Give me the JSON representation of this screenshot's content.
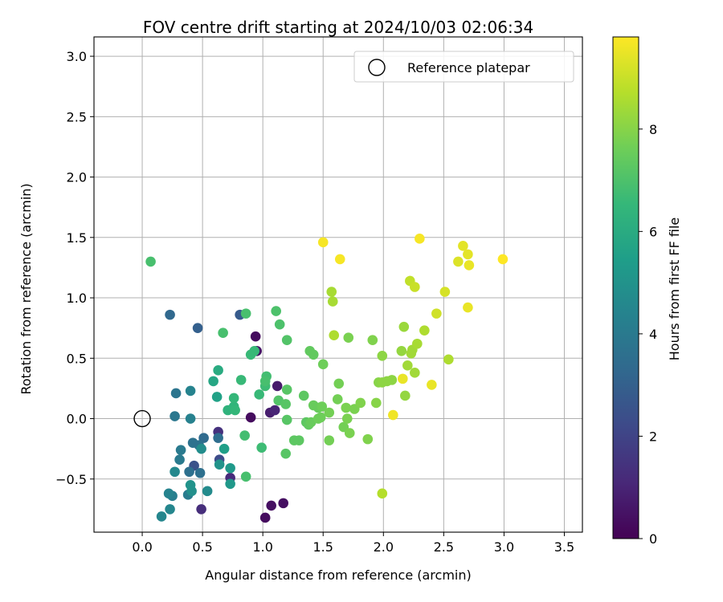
{
  "chart_data": {
    "type": "scatter",
    "title": "FOV centre drift starting at 2024/10/03 02:06:34",
    "xlabel": "Angular distance from reference (arcmin)",
    "ylabel": "Rotation from reference (arcmin)",
    "xlim": [
      -0.4,
      3.65
    ],
    "ylim": [
      -0.94,
      3.16
    ],
    "xticks": [
      "0.0",
      "0.5",
      "1.0",
      "1.5",
      "2.0",
      "2.5",
      "3.0",
      "3.5"
    ],
    "yticks": [
      "−0.5",
      "0.0",
      "0.5",
      "1.0",
      "1.5",
      "2.0",
      "2.5",
      "3.0"
    ],
    "grid": true,
    "legend": {
      "position": "top-right",
      "entries": [
        {
          "label": "Reference platepar",
          "marker": "open-circle",
          "x": 0.0,
          "y": 0.0
        }
      ]
    },
    "colorbar": {
      "label": "Hours from first FF file",
      "range": [
        0,
        9.8
      ],
      "ticks": [
        "0",
        "2",
        "4",
        "6",
        "8"
      ],
      "colormap": "viridis",
      "stops": [
        "#440154",
        "#482878",
        "#3e4989",
        "#31688e",
        "#26828e",
        "#1f9e89",
        "#35b779",
        "#6ece58",
        "#b5de2b",
        "#fde725"
      ]
    },
    "series": [
      {
        "points": [
          [
            0.94,
            0.68,
            0.3
          ],
          [
            0.9,
            0.01,
            0.3
          ],
          [
            1.02,
            -0.82,
            0.3
          ],
          [
            1.07,
            -0.72,
            0.4
          ],
          [
            1.17,
            -0.7,
            0.4
          ],
          [
            0.95,
            0.56,
            0.5
          ],
          [
            1.12,
            0.27,
            0.7
          ],
          [
            1.06,
            0.05,
            0.8
          ],
          [
            1.1,
            0.07,
            1.0
          ],
          [
            0.73,
            -0.49,
            1.2
          ],
          [
            0.49,
            -0.75,
            1.3
          ],
          [
            0.63,
            -0.11,
            1.4
          ],
          [
            0.64,
            -0.34,
            2.3
          ],
          [
            0.43,
            -0.39,
            2.5
          ],
          [
            0.81,
            0.86,
            2.8
          ],
          [
            0.46,
            0.75,
            3.0
          ],
          [
            0.23,
            0.86,
            3.3
          ],
          [
            0.51,
            -0.16,
            3.4
          ],
          [
            0.63,
            -0.16,
            3.5
          ],
          [
            0.39,
            -0.44,
            3.6
          ],
          [
            0.48,
            -0.45,
            3.6
          ],
          [
            0.42,
            -0.2,
            3.7
          ],
          [
            0.47,
            -0.22,
            3.7
          ],
          [
            0.28,
            0.21,
            3.8
          ],
          [
            0.27,
            0.02,
            3.9
          ],
          [
            0.31,
            -0.34,
            4.0
          ],
          [
            0.32,
            -0.26,
            4.0
          ],
          [
            0.38,
            -0.63,
            4.1
          ],
          [
            0.25,
            -0.64,
            4.2
          ],
          [
            0.4,
            0.0,
            4.3
          ],
          [
            0.4,
            0.23,
            4.4
          ],
          [
            0.22,
            -0.62,
            4.4
          ],
          [
            0.23,
            -0.75,
            4.5
          ],
          [
            0.16,
            -0.81,
            4.5
          ],
          [
            0.27,
            -0.44,
            4.6
          ],
          [
            0.54,
            -0.6,
            4.7
          ],
          [
            0.49,
            -0.25,
            4.8
          ],
          [
            0.41,
            -0.6,
            4.9
          ],
          [
            0.4,
            -0.55,
            5.0
          ],
          [
            0.64,
            -0.38,
            5.0
          ],
          [
            0.73,
            -0.54,
            5.2
          ],
          [
            0.73,
            -0.41,
            5.3
          ],
          [
            0.68,
            -0.25,
            5.5
          ],
          [
            0.62,
            0.18,
            5.6
          ],
          [
            0.59,
            0.31,
            5.8
          ],
          [
            0.63,
            0.4,
            6.0
          ],
          [
            0.71,
            0.07,
            6.3
          ],
          [
            0.76,
            0.1,
            6.4
          ],
          [
            0.77,
            0.07,
            6.5
          ],
          [
            0.76,
            0.17,
            6.5
          ],
          [
            0.82,
            0.32,
            6.6
          ],
          [
            0.9,
            0.53,
            6.6
          ],
          [
            0.93,
            0.56,
            6.6
          ],
          [
            0.97,
            0.2,
            6.6
          ],
          [
            0.99,
            -0.24,
            6.7
          ],
          [
            1.02,
            0.27,
            6.7
          ],
          [
            1.03,
            0.35,
            6.8
          ],
          [
            1.02,
            0.31,
            6.9
          ],
          [
            0.85,
            -0.14,
            6.8
          ],
          [
            0.86,
            -0.48,
            6.9
          ],
          [
            0.07,
            1.3,
            6.9
          ],
          [
            0.67,
            0.71,
            6.9
          ],
          [
            0.86,
            0.87,
            6.9
          ],
          [
            1.11,
            0.89,
            7.0
          ],
          [
            1.14,
            0.78,
            7.0
          ],
          [
            1.2,
            0.65,
            7.1
          ],
          [
            1.13,
            0.15,
            7.1
          ],
          [
            1.19,
            0.12,
            7.2
          ],
          [
            1.2,
            0.24,
            7.2
          ],
          [
            1.2,
            -0.01,
            7.2
          ],
          [
            1.19,
            -0.29,
            7.2
          ],
          [
            1.26,
            -0.18,
            7.3
          ],
          [
            1.3,
            -0.18,
            7.3
          ],
          [
            1.34,
            0.19,
            7.3
          ],
          [
            1.36,
            -0.03,
            7.3
          ],
          [
            1.39,
            0.56,
            7.4
          ],
          [
            1.42,
            0.53,
            7.4
          ],
          [
            1.38,
            -0.05,
            7.4
          ],
          [
            1.4,
            -0.03,
            7.5
          ],
          [
            1.42,
            0.11,
            7.5
          ],
          [
            1.46,
            0.09,
            7.5
          ],
          [
            1.46,
            0.0,
            7.6
          ],
          [
            1.49,
            0.1,
            7.6
          ],
          [
            1.5,
            0.45,
            7.6
          ],
          [
            1.48,
            0.01,
            7.6
          ],
          [
            1.55,
            0.05,
            7.7
          ],
          [
            1.55,
            -0.18,
            7.7
          ],
          [
            1.62,
            0.16,
            7.7
          ],
          [
            1.63,
            0.29,
            7.7
          ],
          [
            1.67,
            -0.07,
            7.7
          ],
          [
            1.69,
            0.09,
            7.8
          ],
          [
            1.7,
            0.0,
            7.8
          ],
          [
            1.71,
            0.67,
            7.8
          ],
          [
            1.72,
            -0.12,
            7.8
          ],
          [
            1.76,
            0.08,
            7.8
          ],
          [
            1.81,
            0.13,
            7.9
          ],
          [
            1.87,
            -0.17,
            7.9
          ],
          [
            1.91,
            0.65,
            7.9
          ],
          [
            1.94,
            0.13,
            8.0
          ],
          [
            1.96,
            0.3,
            8.0
          ],
          [
            1.99,
            0.3,
            8.1
          ],
          [
            1.99,
            0.52,
            8.1
          ],
          [
            2.03,
            0.31,
            8.1
          ],
          [
            2.07,
            0.32,
            8.1
          ],
          [
            2.15,
            0.56,
            8.2
          ],
          [
            2.18,
            0.19,
            8.2
          ],
          [
            2.17,
            0.76,
            8.3
          ],
          [
            2.2,
            0.44,
            8.4
          ],
          [
            2.23,
            0.54,
            8.4
          ],
          [
            2.24,
            0.57,
            8.4
          ],
          [
            2.26,
            0.38,
            8.4
          ],
          [
            2.28,
            0.62,
            8.5
          ],
          [
            1.57,
            1.05,
            8.5
          ],
          [
            1.58,
            0.97,
            8.5
          ],
          [
            1.59,
            0.69,
            8.6
          ],
          [
            2.34,
            0.73,
            8.6
          ],
          [
            2.54,
            0.49,
            8.6
          ],
          [
            1.99,
            -0.62,
            8.7
          ],
          [
            2.22,
            1.14,
            8.9
          ],
          [
            2.26,
            1.09,
            9.0
          ],
          [
            2.44,
            0.87,
            9.1
          ],
          [
            2.51,
            1.05,
            9.2
          ],
          [
            2.62,
            1.3,
            9.3
          ],
          [
            2.66,
            1.43,
            9.4
          ],
          [
            2.7,
            1.36,
            9.4
          ],
          [
            2.71,
            1.27,
            9.5
          ],
          [
            2.7,
            0.92,
            9.5
          ],
          [
            2.4,
            0.28,
            9.5
          ],
          [
            2.16,
            0.33,
            9.5
          ],
          [
            2.08,
            0.03,
            9.6
          ],
          [
            1.5,
            1.46,
            9.7
          ],
          [
            1.64,
            1.32,
            9.7
          ],
          [
            2.3,
            1.49,
            9.7
          ],
          [
            2.99,
            1.32,
            9.8
          ]
        ]
      }
    ]
  }
}
